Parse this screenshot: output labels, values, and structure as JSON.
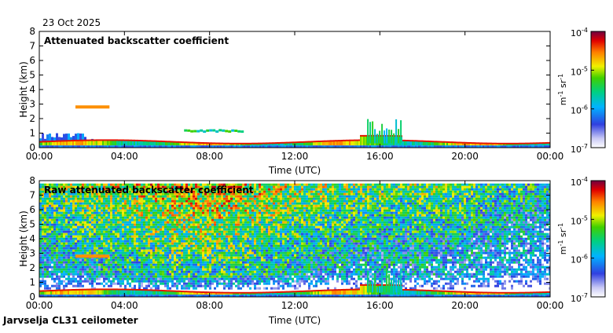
{
  "header": {
    "date": "23 Oct 2025"
  },
  "footer": {
    "station": "Jarvselja CL31 ceilometer"
  },
  "chart_data": [
    {
      "type": "heatmap",
      "title": "Attenuated backscatter coefficient",
      "xlabel": "Time (UTC)",
      "ylabel": "Height (km)",
      "xlim": [
        0,
        24
      ],
      "ylim": [
        0,
        8
      ],
      "xticks": [
        "00:00",
        "04:00",
        "08:00",
        "12:00",
        "16:00",
        "20:00",
        "00:00"
      ],
      "yticks": [
        "0",
        "1",
        "2",
        "3",
        "4",
        "5",
        "6",
        "7",
        "8"
      ],
      "colorbar": {
        "label": "m-1 sr-1",
        "label_base": "m",
        "label_exp1": "-1",
        "label_mid": " sr",
        "label_exp2": "-1",
        "ticks": [
          {
            "base": "10",
            "exp": "-4"
          },
          {
            "base": "10",
            "exp": "-5"
          },
          {
            "base": "10",
            "exp": "-6"
          },
          {
            "base": "10",
            "exp": "-7"
          }
        ],
        "range_log10": [
          -7,
          -4
        ]
      },
      "features": [
        {
          "name": "boundary-layer",
          "t_start": 0,
          "t_end": 24,
          "top_km": 0.4,
          "level_log10": -5.2
        },
        {
          "name": "low-cloud-layer",
          "t_start": 0,
          "t_end": 3.0,
          "top_km": 1.0,
          "level_log10": -6.2
        },
        {
          "name": "elevated-layer",
          "t_start": 1.7,
          "t_end": 3.3,
          "height_km": 2.8,
          "level_log10": -4.6
        },
        {
          "name": "mid-layer",
          "t_start": 6.8,
          "t_end": 9.5,
          "height_km": 1.1,
          "level_log10": -5.5
        },
        {
          "name": "convective-plumes",
          "t_start": 15.4,
          "t_end": 17.0,
          "top_km": 2.0,
          "level_log10": -5.6
        }
      ]
    },
    {
      "type": "heatmap",
      "title": "Raw attenuated backscatter coefficient",
      "xlabel": "Time (UTC)",
      "ylabel": "Height (km)",
      "xlim": [
        0,
        24
      ],
      "ylim": [
        0,
        8
      ],
      "xticks": [
        "00:00",
        "04:00",
        "08:00",
        "12:00",
        "16:00",
        "20:00",
        "00:00"
      ],
      "yticks": [
        "0",
        "1",
        "2",
        "3",
        "4",
        "5",
        "6",
        "7",
        "8"
      ],
      "colorbar": {
        "label": "m-1 sr-1",
        "label_base": "m",
        "label_exp1": "-1",
        "label_mid": " sr",
        "label_exp2": "-1",
        "ticks": [
          {
            "base": "10",
            "exp": "-4"
          },
          {
            "base": "10",
            "exp": "-5"
          },
          {
            "base": "10",
            "exp": "-6"
          },
          {
            "base": "10",
            "exp": "-7"
          }
        ],
        "range_log10": [
          -7,
          -4
        ]
      },
      "features": [
        {
          "name": "noise-field",
          "t_start": 0,
          "t_end": 24,
          "bottom_km": 0.6,
          "top_km": 7.8
        },
        {
          "name": "boundary-layer",
          "t_start": 0,
          "t_end": 24,
          "top_km": 0.4,
          "level_log10": -5.2
        },
        {
          "name": "elevated-layer",
          "t_start": 1.7,
          "t_end": 3.3,
          "height_km": 2.8,
          "level_log10": -4.6
        },
        {
          "name": "convective-plumes",
          "t_start": 15.4,
          "t_end": 17.0,
          "top_km": 2.0,
          "level_log10": -5.6
        }
      ]
    }
  ]
}
